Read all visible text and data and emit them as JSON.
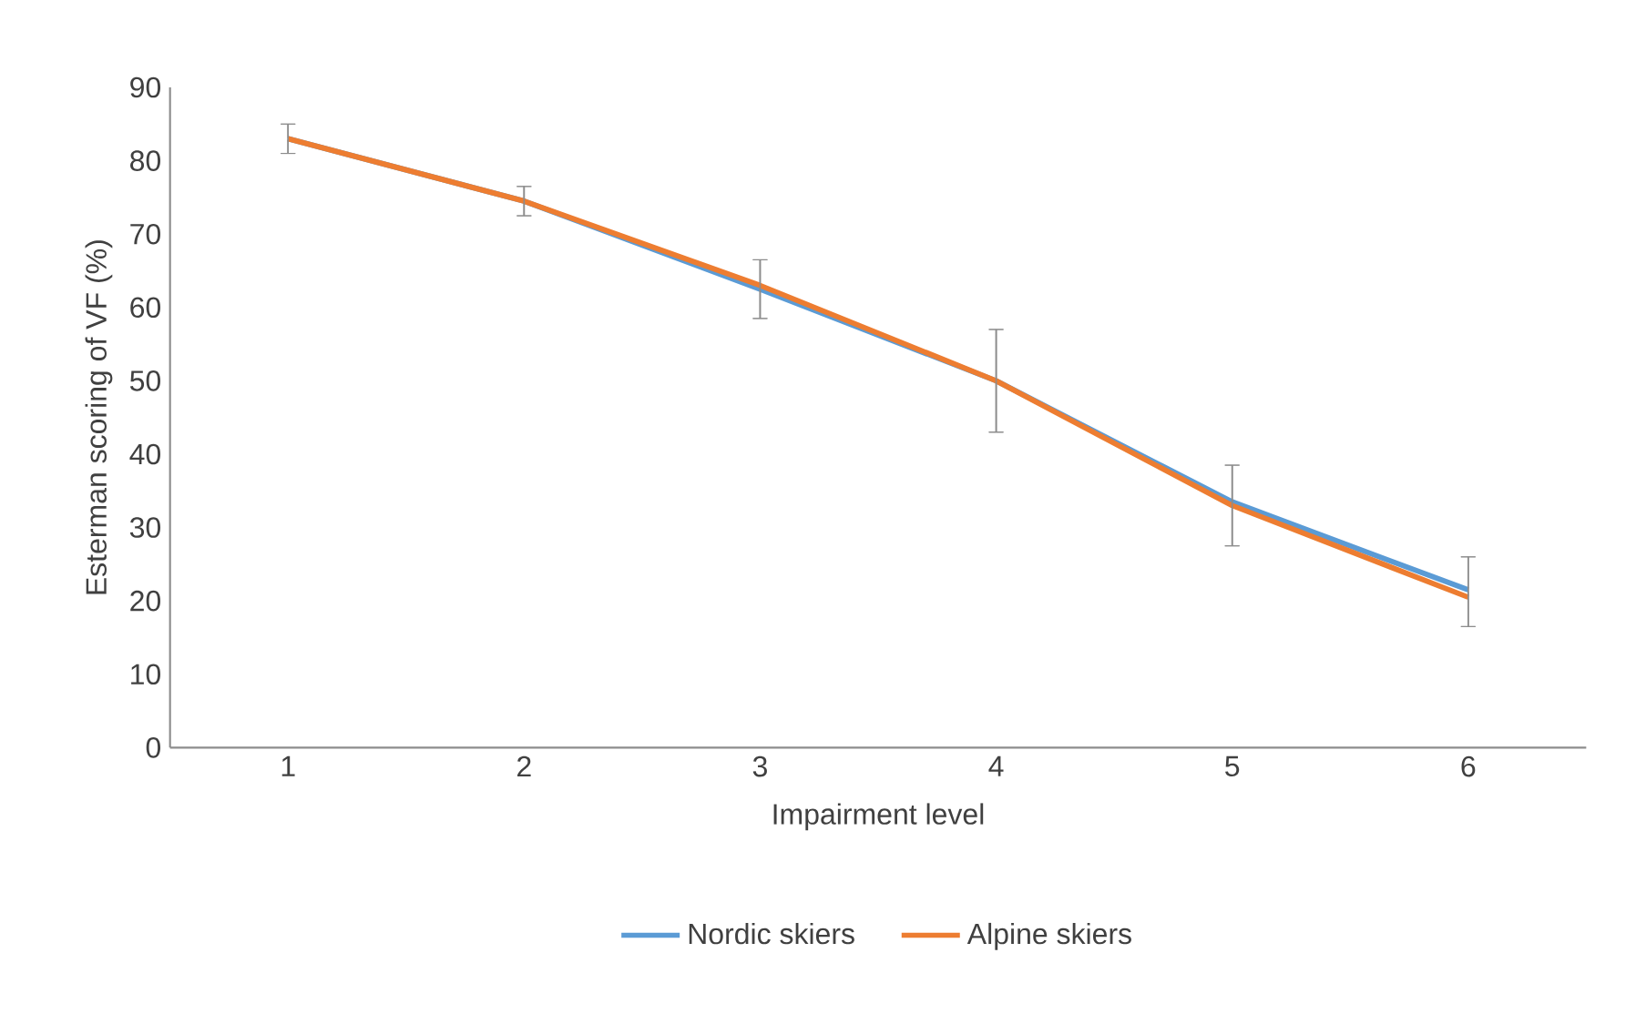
{
  "chart_data": {
    "type": "line",
    "xlabel": "Impairment level",
    "ylabel": "Esterman scoring of VF (%)",
    "categories": [
      "1",
      "2",
      "3",
      "4",
      "5",
      "6"
    ],
    "series": [
      {
        "name": "Nordic skiers",
        "color": "#5b9bd5",
        "values": [
          83,
          74.5,
          62.5,
          50,
          33.5,
          21.5
        ],
        "errors": [
          2,
          2,
          [
            58.5,
            66.5
          ],
          7,
          [
            27.5,
            38.5
          ],
          [
            16.5,
            26
          ]
        ]
      },
      {
        "name": "Alpine skiers",
        "color": "#ed7d31",
        "values": [
          83,
          74.5,
          63,
          50,
          33,
          20.5
        ],
        "errors": [
          2,
          2,
          [
            58.5,
            66.5
          ],
          7,
          [
            27.5,
            38.5
          ],
          [
            16.5,
            26
          ]
        ]
      }
    ],
    "ylim": [
      0,
      90
    ],
    "yticks": [
      0,
      10,
      20,
      30,
      40,
      50,
      60,
      70,
      80,
      90
    ],
    "grid": false,
    "legend": "bottom",
    "marker": "none",
    "line_style": "solid"
  }
}
